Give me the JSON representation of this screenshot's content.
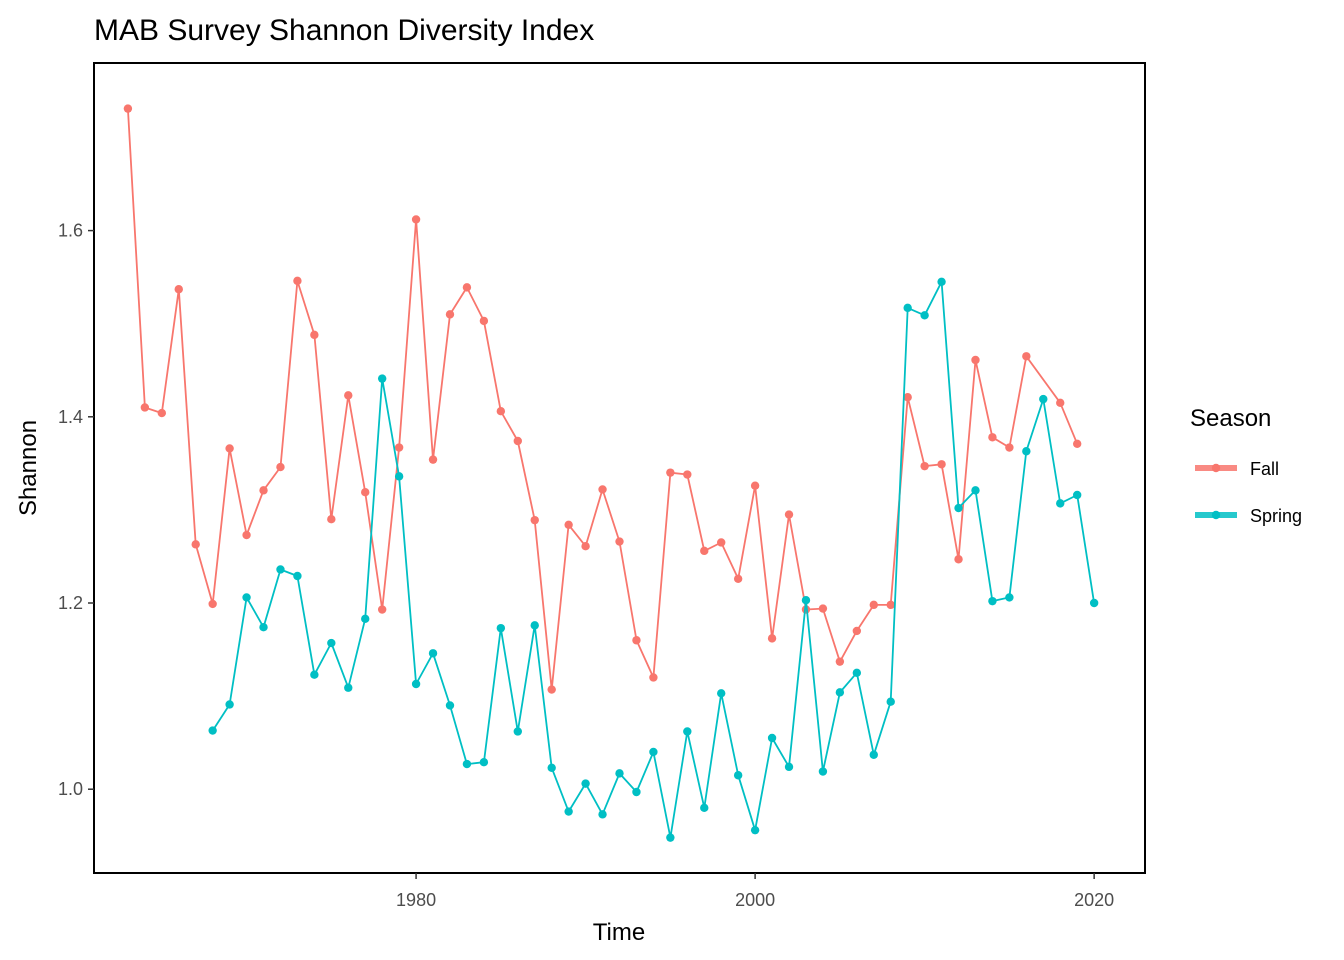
{
  "chart_data": {
    "type": "line",
    "title": "MAB Survey Shannon Diversity Index",
    "xlabel": "Time",
    "ylabel": "Shannon",
    "xlim": [
      1961,
      2023
    ],
    "ylim": [
      0.91,
      1.78
    ],
    "xticks": [
      1980,
      2000,
      2020
    ],
    "yticks": [
      1.0,
      1.2,
      1.4,
      1.6
    ],
    "ytick_labels": [
      "1.0",
      "1.2",
      "1.4",
      "1.6"
    ],
    "grid": false,
    "legend": {
      "title": "Season",
      "position": "right"
    },
    "series": [
      {
        "name": "Fall",
        "color": "#f8766d",
        "x": [
          1963,
          1964,
          1965,
          1966,
          1967,
          1968,
          1969,
          1970,
          1971,
          1972,
          1973,
          1974,
          1975,
          1976,
          1977,
          1978,
          1979,
          1980,
          1981,
          1982,
          1983,
          1984,
          1985,
          1986,
          1987,
          1988,
          1989,
          1990,
          1991,
          1992,
          1993,
          1994,
          1995,
          1996,
          1997,
          1998,
          1999,
          2000,
          2001,
          2002,
          2003,
          2004,
          2005,
          2006,
          2007,
          2008,
          2009,
          2010,
          2011,
          2012,
          2013,
          2014,
          2015,
          2016,
          2018,
          2019
        ],
        "y": [
          1.731,
          1.41,
          1.404,
          1.537,
          1.263,
          1.199,
          1.366,
          1.273,
          1.321,
          1.346,
          1.546,
          1.488,
          1.29,
          1.423,
          1.319,
          1.193,
          1.367,
          1.612,
          1.354,
          1.51,
          1.539,
          1.503,
          1.406,
          1.374,
          1.289,
          1.107,
          1.284,
          1.261,
          1.322,
          1.266,
          1.16,
          1.12,
          1.34,
          1.338,
          1.256,
          1.265,
          1.226,
          1.326,
          1.162,
          1.295,
          1.193,
          1.194,
          1.137,
          1.17,
          1.198,
          1.198,
          1.421,
          1.347,
          1.349,
          1.247,
          1.461,
          1.378,
          1.367,
          1.465,
          1.415,
          1.371
        ]
      },
      {
        "name": "Spring",
        "color": "#00bfc4",
        "x": [
          1968,
          1969,
          1970,
          1971,
          1972,
          1973,
          1974,
          1975,
          1976,
          1977,
          1978,
          1979,
          1980,
          1981,
          1982,
          1983,
          1984,
          1985,
          1986,
          1987,
          1988,
          1989,
          1990,
          1991,
          1992,
          1993,
          1994,
          1995,
          1996,
          1997,
          1998,
          1999,
          2000,
          2001,
          2002,
          2003,
          2004,
          2005,
          2006,
          2007,
          2008,
          2009,
          2010,
          2011,
          2012,
          2013,
          2014,
          2015,
          2016,
          2017,
          2018,
          2019,
          2020
        ],
        "y": [
          1.063,
          1.091,
          1.206,
          1.174,
          1.236,
          1.229,
          1.123,
          1.157,
          1.109,
          1.183,
          1.441,
          1.336,
          1.113,
          1.146,
          1.09,
          1.027,
          1.029,
          1.173,
          1.062,
          1.176,
          1.023,
          0.976,
          1.006,
          0.973,
          1.017,
          0.997,
          1.04,
          0.948,
          1.062,
          0.98,
          1.103,
          1.015,
          0.956,
          1.055,
          1.024,
          1.203,
          1.019,
          1.104,
          1.125,
          1.037,
          1.094,
          1.517,
          1.509,
          1.545,
          1.302,
          1.321,
          1.202,
          1.206,
          1.363,
          1.419,
          1.307,
          1.316,
          1.2
        ]
      }
    ]
  }
}
